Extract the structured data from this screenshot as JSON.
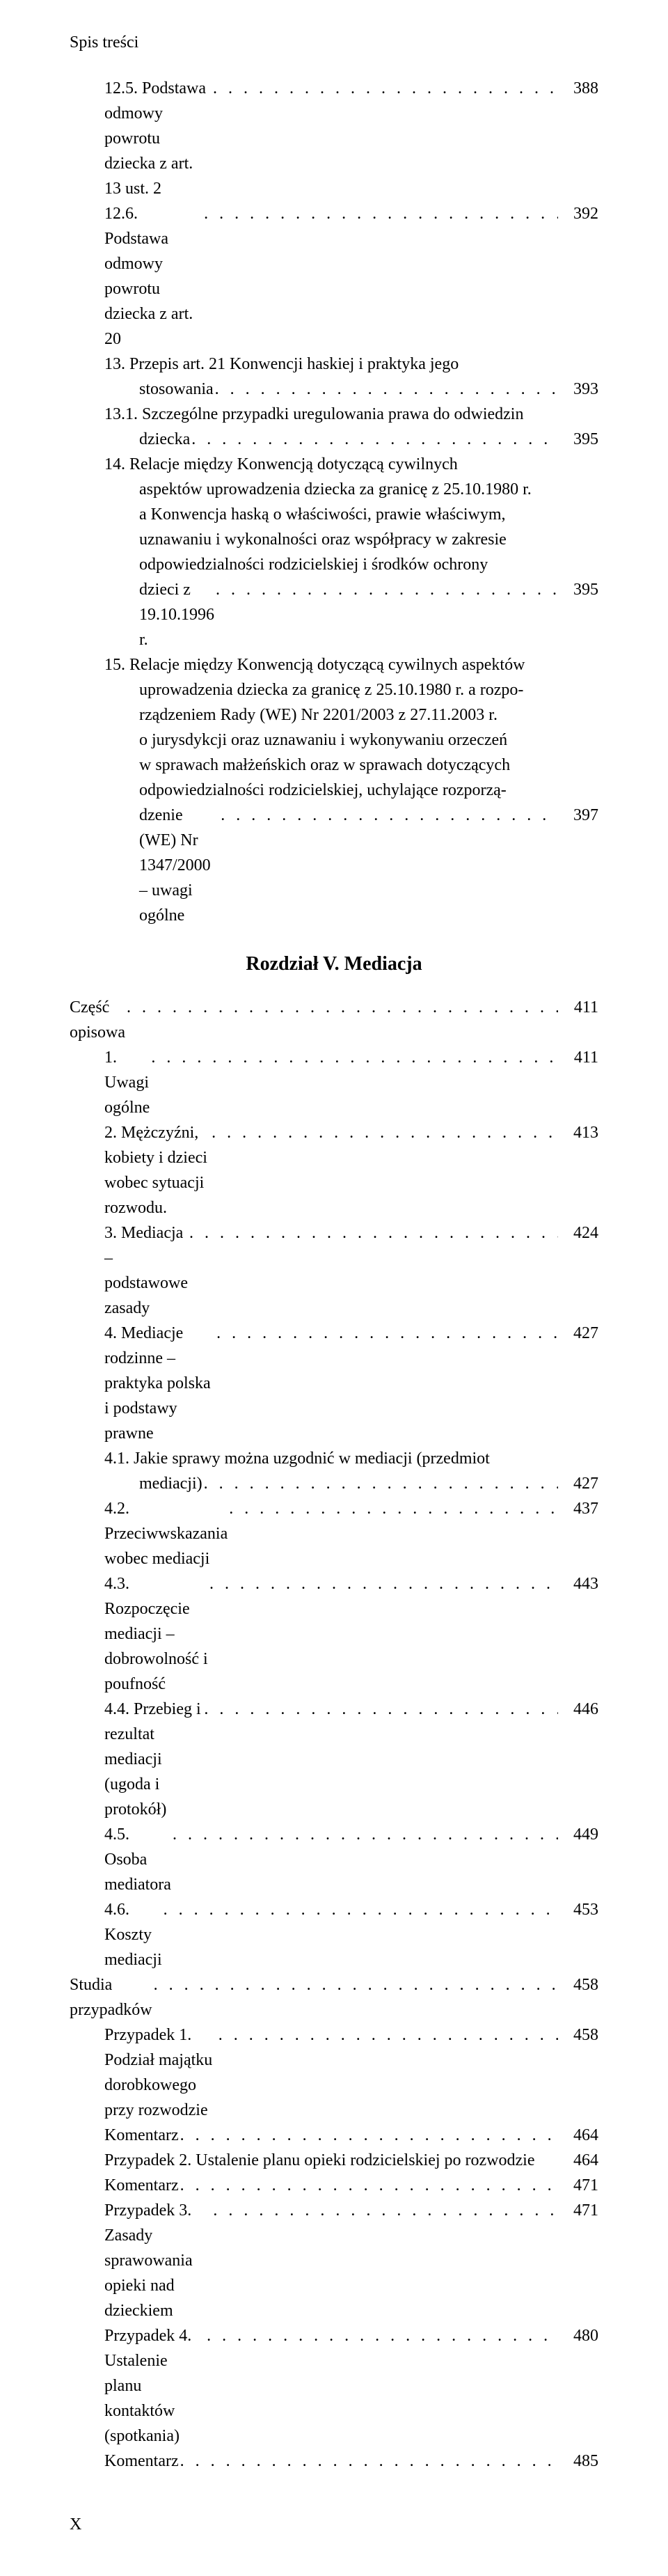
{
  "header": "Spis treści",
  "footer_page": "X",
  "chapter_title": "Rozdział V. Mediacja",
  "top": [
    {
      "lines": [
        "12.5. Podstawa odmowy powrotu dziecka z art. 13 ust. 2"
      ],
      "indent": "indent-1",
      "page": "388"
    },
    {
      "lines": [
        "12.6. Podstawa odmowy powrotu dziecka z art. 20"
      ],
      "indent": "indent-1",
      "page": "392"
    },
    {
      "lines": [
        "13. Przepis art. 21 Konwencji haskiej i praktyka jego",
        "stosowania"
      ],
      "indent": "indent-1",
      "cont": "indent-cont",
      "page": "393"
    },
    {
      "lines": [
        "13.1. Szczególne przypadki uregulowania prawa do odwiedzin",
        "dziecka"
      ],
      "indent": "indent-1",
      "cont": "indent-cont",
      "page": "395"
    },
    {
      "lines": [
        "14. Relacje między Konwencją dotyczącą cywilnych",
        "aspektów uprowadzenia dziecka za granicę z 25.10.1980 r.",
        "a Konwencja haską o właściwości, prawie właściwym,",
        "uznawaniu i wykonalności oraz współpracy w zakresie",
        "odpowiedzialności rodzicielskiej i środków ochrony",
        "dzieci z 19.10.1996 r."
      ],
      "indent": "indent-1",
      "cont": "indent-cont",
      "page": "395"
    },
    {
      "lines": [
        "15. Relacje między Konwencją dotyczącą cywilnych aspektów",
        "uprowadzenia dziecka za granicę z 25.10.1980 r. a rozpo-",
        "rządzeniem Rady (WE) Nr 2201/2003 z 27.11.2003 r.",
        "o jurysdykcji oraz uznawaniu i wykonywaniu orzeczeń",
        "w sprawach małżeńskich oraz w sprawach dotyczących",
        "odpowiedzialności rodzicielskiej, uchylające rozporzą-",
        "dzenie (WE) Nr 1347/2000 – uwagi ogólne"
      ],
      "indent": "indent-1",
      "cont": "indent-cont",
      "page": "397"
    }
  ],
  "bottom": [
    {
      "lines": [
        "Część opisowa"
      ],
      "indent": "indent-0",
      "page": "411"
    },
    {
      "lines": [
        "1. Uwagi ogólne"
      ],
      "indent": "indent-1",
      "page": "411"
    },
    {
      "lines": [
        "2. Mężczyźni, kobiety i dzieci wobec sytuacji rozwodu."
      ],
      "indent": "indent-1",
      "page": "413"
    },
    {
      "lines": [
        "3. Mediacja – podstawowe zasady"
      ],
      "indent": "indent-1",
      "page": "424"
    },
    {
      "lines": [
        "4. Mediacje rodzinne – praktyka polska i podstawy prawne"
      ],
      "indent": "indent-1",
      "page": "427"
    },
    {
      "lines": [
        "4.1. Jakie sprawy można uzgodnić w mediacji (przedmiot",
        "mediacji)"
      ],
      "indent": "indent-1b",
      "cont": "indent-cont-b",
      "page": "427"
    },
    {
      "lines": [
        "4.2. Przeciwwskazania wobec mediacji"
      ],
      "indent": "indent-1b",
      "page": "437"
    },
    {
      "lines": [
        "4.3. Rozpoczęcie mediacji – dobrowolność i poufność"
      ],
      "indent": "indent-1b",
      "page": "443"
    },
    {
      "lines": [
        "4.4. Przebieg i rezultat mediacji (ugoda i protokół)"
      ],
      "indent": "indent-1b",
      "page": "446"
    },
    {
      "lines": [
        "4.5. Osoba mediatora"
      ],
      "indent": "indent-1b",
      "page": "449"
    },
    {
      "lines": [
        "4.6. Koszty mediacji"
      ],
      "indent": "indent-1b",
      "page": "453"
    },
    {
      "lines": [
        "Studia przypadków"
      ],
      "indent": "indent-0",
      "page": "458"
    },
    {
      "lines": [
        "Przypadek 1. Podział majątku dorobkowego przy rozwodzie"
      ],
      "indent": "indent-1b",
      "page": "458"
    },
    {
      "lines": [
        "Komentarz"
      ],
      "indent": "indent-1b",
      "page": "464"
    },
    {
      "lines": [
        "Przypadek 2. Ustalenie planu opieki rodzicielskiej po rozwodzie"
      ],
      "indent": "indent-1b",
      "page": "464",
      "nodots": true
    },
    {
      "lines": [
        "Komentarz"
      ],
      "indent": "indent-1b",
      "page": "471"
    },
    {
      "lines": [
        "Przypadek 3. Zasady sprawowania opieki nad dzieckiem"
      ],
      "indent": "indent-1b",
      "page": "471"
    },
    {
      "lines": [
        "Przypadek 4. Ustalenie planu kontaktów (spotkania)"
      ],
      "indent": "indent-1b",
      "page": "480"
    },
    {
      "lines": [
        "Komentarz"
      ],
      "indent": "indent-1b",
      "page": "485"
    }
  ]
}
